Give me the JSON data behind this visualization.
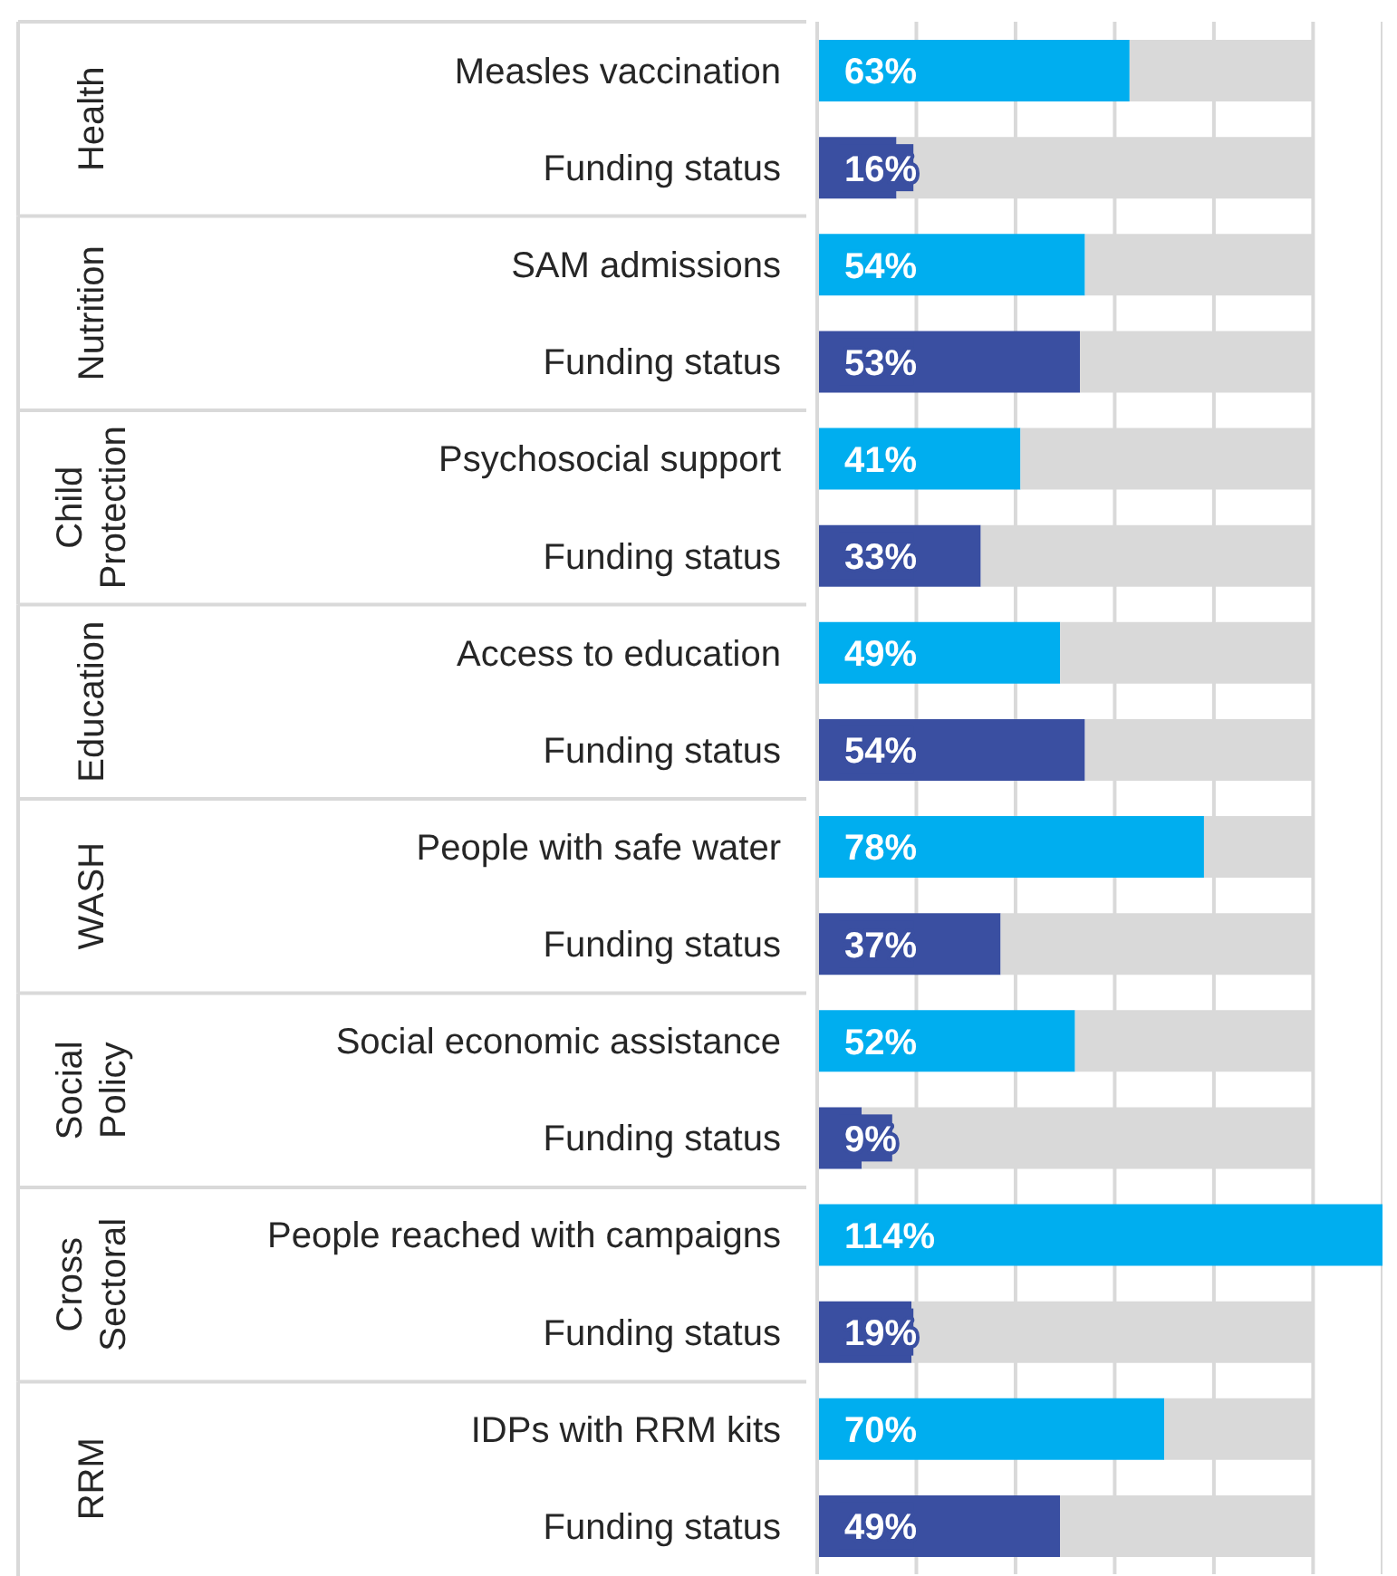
{
  "chart_data": {
    "type": "bar",
    "orientation": "horizontal",
    "stacked": true,
    "categories": [
      "Measles vaccination",
      "Funding status",
      "SAM admissions",
      "Funding status",
      "Psychosocial support",
      "Funding status",
      "Access to education",
      "Funding status",
      "People with safe water",
      "Funding status",
      "Social economic assistance",
      "Funding status",
      "People reached with campaigns",
      "Funding status",
      "IDPs with RRM kits",
      "Funding status"
    ],
    "series": [
      {
        "colors": [
          "#00aeef",
          "#3a4fa1",
          "#00aeef",
          "#3a4fa1",
          "#00aeef",
          "#3a4fa1",
          "#00aeef",
          "#3a4fa1",
          "#00aeef",
          "#3a4fa1",
          "#00aeef",
          "#3a4fa1",
          "#00aeef",
          "#3a4fa1",
          "#00aeef",
          "#3a4fa1"
        ],
        "values": [
          63,
          16,
          54,
          53,
          41,
          33,
          49,
          54,
          78,
          37,
          52,
          9,
          114,
          19,
          70,
          49
        ],
        "value_labels": [
          "63%",
          "16%",
          "54%",
          "53%",
          "41%",
          "33%",
          "49%",
          "54%",
          "78%",
          "37%",
          "52%",
          "9%",
          "114%",
          "19%",
          "70%",
          "49%"
        ]
      },
      {
        "color": "#d9d9d9",
        "values": [
          37,
          84,
          46,
          47,
          59,
          67,
          51,
          46,
          22,
          63,
          48,
          91,
          null,
          81,
          30,
          51
        ]
      }
    ],
    "annotations": [
      "Health",
      "Nutrition",
      "Child Protection",
      "Education",
      "WASH",
      "Social Policy",
      "Cross Sectoral",
      "RRM"
    ],
    "xlim": [
      0,
      114
    ],
    "xticks": [
      {
        "value": 0,
        "label": null
      },
      {
        "value": 20,
        "label": null
      },
      {
        "value": 40,
        "label": null
      },
      {
        "value": 60,
        "label": null
      },
      {
        "value": 80,
        "label": null
      },
      {
        "value": 100,
        "label": null
      }
    ],
    "grid": "x",
    "tick_labels": "y",
    "legend": false
  }
}
